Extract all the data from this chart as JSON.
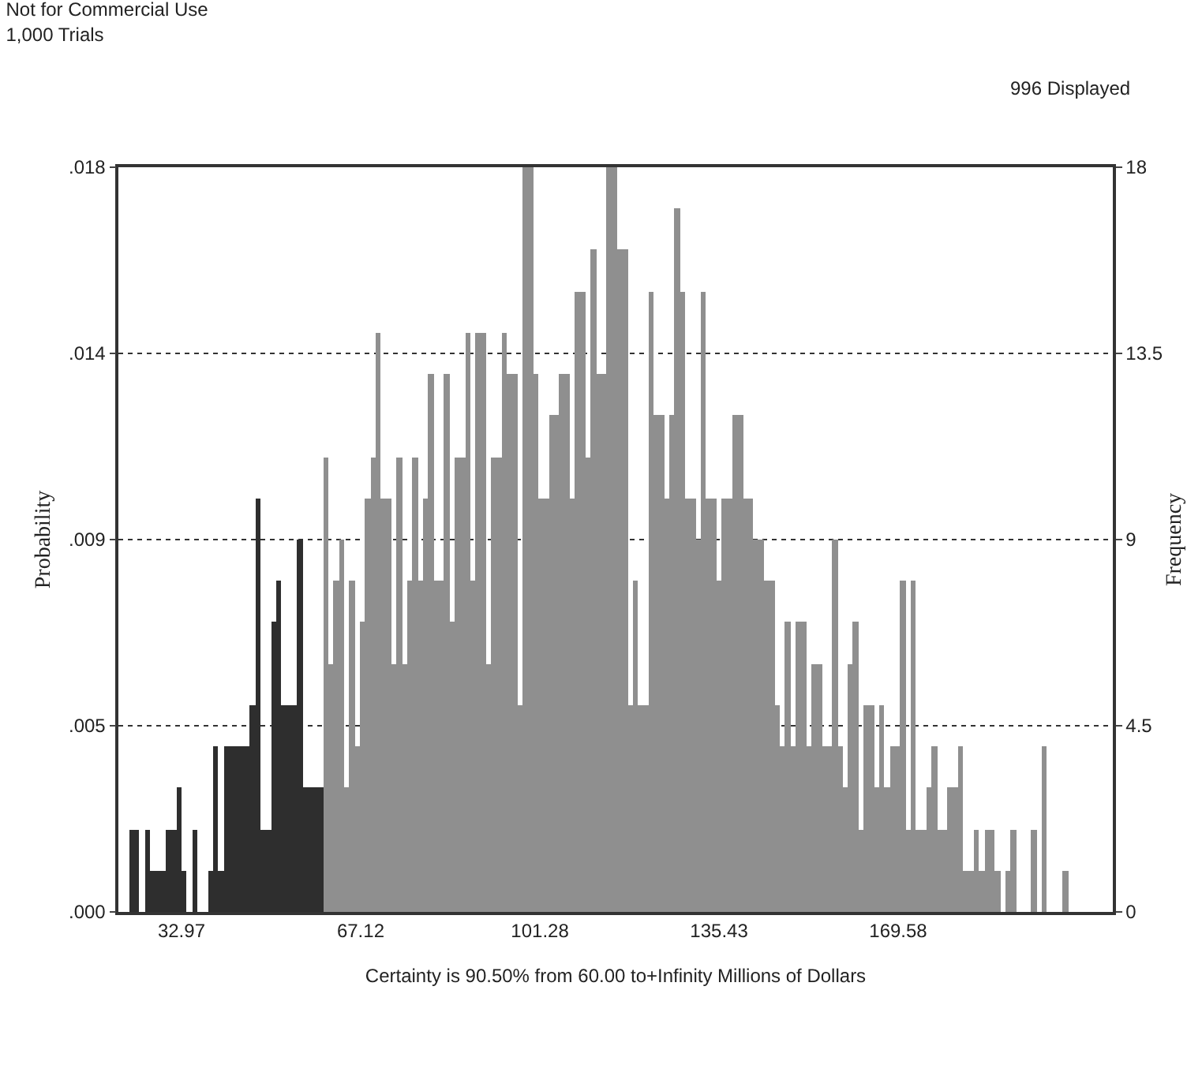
{
  "chart_data": {
    "type": "histogram",
    "title": "Not for Commercial Use",
    "subtitle": "1,000 Trials",
    "annotations": [
      "996 Displayed"
    ],
    "xlabel": "Certainty is 90.50% from 60.00 to+Infinity Millions of Dollars",
    "ylabel": "Probability",
    "y2label": "Frequency",
    "bins": [
      23,
      24,
      25,
      26,
      27,
      28,
      29,
      30,
      31,
      32,
      33,
      34,
      35,
      36,
      37,
      38,
      39,
      40,
      41,
      42,
      43,
      44,
      45,
      46,
      47,
      48,
      49,
      50,
      51,
      52,
      53,
      54,
      55,
      56,
      57,
      58,
      59,
      60,
      61,
      62,
      63,
      64,
      65,
      66,
      67,
      68,
      69,
      70,
      71,
      72,
      73,
      74,
      75,
      76,
      77,
      78,
      79,
      80,
      81,
      82,
      83,
      84,
      85,
      86,
      87,
      88,
      89,
      90,
      91,
      92,
      93,
      94,
      95,
      96,
      97,
      98,
      99,
      100,
      101,
      102,
      103,
      104,
      105,
      106,
      107,
      108,
      109,
      110,
      111,
      112,
      113,
      114,
      115,
      116,
      117,
      118,
      119,
      120,
      121,
      122,
      123,
      124,
      125,
      126,
      127,
      128,
      129,
      130,
      131,
      132,
      133,
      134,
      135,
      136,
      137,
      138,
      139,
      140,
      141,
      142,
      143,
      144,
      145,
      146,
      147,
      148,
      149,
      150,
      151,
      152,
      153,
      154,
      155,
      156,
      157,
      158,
      159,
      160,
      161,
      162,
      163,
      164,
      165,
      166,
      167,
      168,
      169,
      170,
      171,
      172,
      173,
      174,
      175,
      176,
      177,
      178,
      179,
      180,
      181,
      182,
      183,
      184,
      185,
      186,
      187,
      188,
      189,
      190,
      191,
      192,
      193,
      194,
      195,
      196,
      197,
      198,
      199,
      200,
      201,
      202
    ],
    "series": [
      {
        "color": "#2e2e2e",
        "axis": "y2",
        "values": [
          2,
          2,
          0,
          2,
          1,
          1,
          1,
          2,
          2,
          3,
          1,
          0,
          2,
          0,
          0,
          1,
          4,
          1,
          4,
          4,
          4,
          4,
          4,
          5,
          10,
          2,
          2,
          7,
          8,
          5,
          5,
          5,
          9,
          3,
          3,
          3,
          3,
          null,
          null,
          null,
          null,
          null,
          null,
          null,
          null,
          null,
          null,
          null,
          null,
          null,
          null,
          null,
          null,
          null,
          null,
          null,
          null,
          null,
          null,
          null,
          null,
          null,
          null,
          null,
          null,
          null,
          null,
          null,
          null,
          null,
          null,
          null,
          null,
          null,
          null,
          null,
          null,
          null,
          null,
          null,
          null,
          null,
          null,
          null,
          null,
          null,
          null,
          null,
          null,
          null,
          null,
          null,
          null,
          null,
          null,
          null,
          null,
          null,
          null,
          null,
          null,
          null,
          null,
          null,
          null,
          null,
          null,
          null,
          null,
          null,
          null,
          null,
          null,
          null,
          null,
          null,
          null,
          null,
          null,
          null,
          null,
          null,
          null,
          null,
          null,
          null,
          null,
          null,
          null,
          null,
          null,
          null,
          null,
          null,
          null,
          null,
          null,
          null,
          null,
          null,
          null,
          null,
          null,
          null,
          null,
          null,
          null,
          null,
          null,
          null,
          null,
          null,
          null,
          null,
          null,
          null,
          null,
          null,
          null,
          null,
          null,
          null,
          null,
          null,
          null,
          null,
          null,
          null,
          null,
          null,
          null,
          null,
          null,
          null,
          null,
          null,
          null,
          null,
          null
        ]
      },
      {
        "color": "#8f8f8f",
        "axis": "y2",
        "values": [
          null,
          null,
          null,
          null,
          null,
          null,
          null,
          null,
          null,
          null,
          null,
          null,
          null,
          null,
          null,
          null,
          null,
          null,
          null,
          null,
          null,
          null,
          null,
          null,
          null,
          null,
          null,
          null,
          null,
          null,
          null,
          null,
          null,
          null,
          null,
          null,
          null,
          11,
          6,
          8,
          9,
          3,
          8,
          4,
          7,
          10,
          11,
          14,
          10,
          10,
          6,
          11,
          6,
          8,
          11,
          8,
          10,
          13,
          8,
          8,
          13,
          7,
          11,
          11,
          14,
          8,
          14,
          14,
          6,
          11,
          11,
          14,
          13,
          13,
          5,
          18,
          18,
          13,
          10,
          10,
          12,
          12,
          13,
          13,
          10,
          15,
          15,
          11,
          16,
          13,
          13,
          18,
          18,
          16,
          16,
          5,
          8,
          5,
          5,
          15,
          12,
          12,
          10,
          12,
          17,
          15,
          10,
          10,
          9,
          15,
          10,
          10,
          8,
          10,
          10,
          12,
          12,
          10,
          10,
          9,
          9,
          8,
          8,
          5,
          4,
          7,
          4,
          7,
          7,
          4,
          6,
          6,
          4,
          4,
          9,
          4,
          3,
          6,
          7,
          2,
          5,
          5,
          3,
          5,
          3,
          4,
          4,
          8,
          2,
          8,
          2,
          2,
          3,
          4,
          2,
          2,
          3,
          3,
          4,
          1,
          1,
          2,
          1,
          2,
          2,
          1,
          0,
          1,
          2,
          0,
          0,
          0,
          2,
          0,
          4,
          0,
          0,
          0,
          1
        ]
      }
    ],
    "xlim": [
      20.94,
      210.5
    ],
    "xticks": [
      32.97,
      67.12,
      101.28,
      135.43,
      169.58
    ],
    "ylim": [
      0,
      0.018
    ],
    "yticks": [
      {
        "value": 0,
        "label": ".000"
      },
      {
        "value": 0.0045,
        "label": ".005"
      },
      {
        "value": 0.009,
        "label": ".009"
      },
      {
        "value": 0.0135,
        "label": ".014"
      },
      {
        "value": 0.018,
        "label": ".018"
      }
    ],
    "y2lim": [
      0,
      18
    ],
    "y2ticks": [
      0,
      4.5,
      9,
      13.5,
      18
    ],
    "grid": "y"
  }
}
